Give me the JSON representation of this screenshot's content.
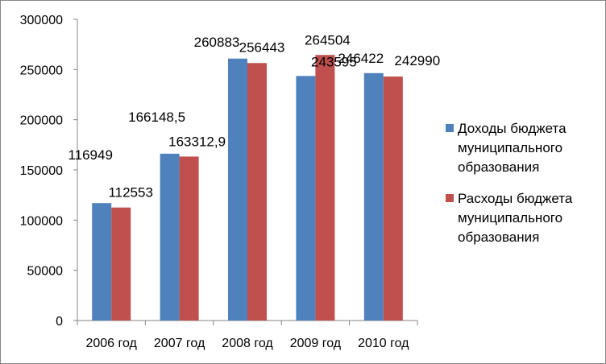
{
  "chart_data": {
    "type": "bar",
    "title": "",
    "xlabel": "",
    "ylabel": "",
    "categories": [
      "2006 год",
      "2007 год",
      "2008 год",
      "2009 год",
      "2010 год"
    ],
    "series": [
      {
        "name": "Доходы бюджета муниципального образования",
        "name_lines": [
          "Доходы бюджета",
          "муниципального",
          "образования"
        ],
        "color": "#4f81bd",
        "values": [
          116949,
          166148.5,
          260883,
          243595,
          246422
        ],
        "labels": [
          "116949",
          "166148,5",
          "260883",
          "243595",
          "246422"
        ]
      },
      {
        "name": "Расходы бюджета муниципального образования",
        "name_lines": [
          "Расходы бюджета",
          "муниципального",
          "образования"
        ],
        "color": "#c0504d",
        "values": [
          112553,
          163312.9,
          256443,
          264504,
          242990
        ],
        "labels": [
          "112553",
          "163312,9",
          "256443",
          "264504",
          "242990"
        ]
      }
    ],
    "ylim": [
      0,
      300000
    ],
    "yticks": [
      0,
      50000,
      100000,
      150000,
      200000,
      250000,
      300000
    ],
    "grid": false,
    "legend": "right"
  }
}
